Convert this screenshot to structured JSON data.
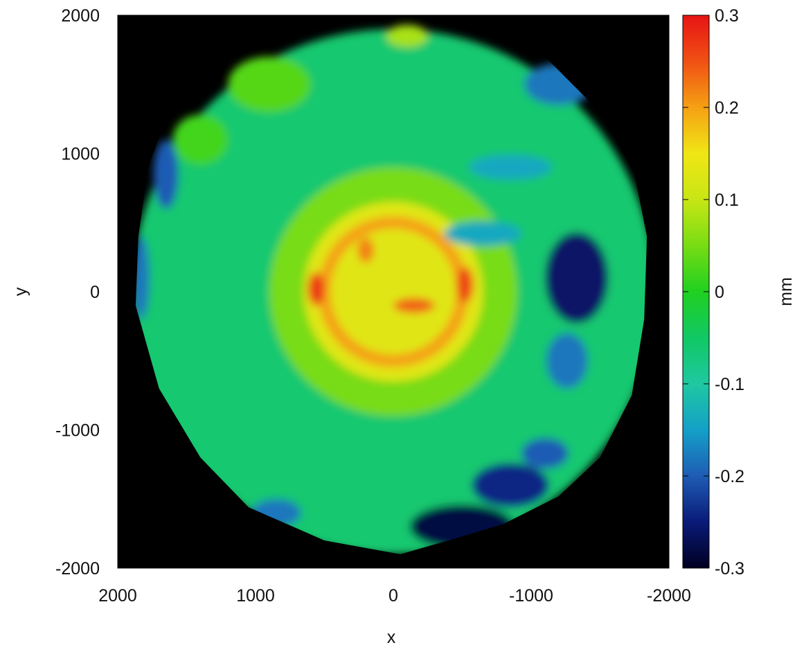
{
  "chart_data": {
    "type": "heatmap",
    "title": "",
    "xlabel": "x",
    "ylabel": "y",
    "xlim": [
      2000,
      -2000
    ],
    "ylim": [
      -2000,
      2000
    ],
    "x_reversed": true,
    "x_ticks": [
      2000,
      1000,
      0,
      -1000,
      -2000
    ],
    "x_tick_labels": [
      "2000",
      "1000",
      "0",
      "-1000",
      "-2000"
    ],
    "y_ticks": [
      2000,
      1000,
      0,
      -1000,
      -2000
    ],
    "y_tick_labels": [
      "2000",
      "1000",
      "0",
      "-1000",
      "-2000"
    ],
    "background_color": "#000000",
    "colorbar": {
      "label": "mm",
      "range": [
        -0.3,
        0.3
      ],
      "ticks": [
        0.3,
        0.2,
        0.1,
        0,
        -0.1,
        -0.2,
        -0.3
      ],
      "tick_labels": [
        "0.3",
        "0.2",
        "0.1",
        "0",
        "-0.1",
        "-0.2",
        "-0.3"
      ],
      "colormap": [
        {
          "value": -0.3,
          "color": "#000020"
        },
        {
          "value": -0.25,
          "color": "#0a1a78"
        },
        {
          "value": -0.2,
          "color": "#1e5cb4"
        },
        {
          "value": -0.15,
          "color": "#14a0c8"
        },
        {
          "value": -0.1,
          "color": "#1ec8a0"
        },
        {
          "value": -0.05,
          "color": "#10c864"
        },
        {
          "value": 0,
          "color": "#20d020"
        },
        {
          "value": 0.05,
          "color": "#78dc14"
        },
        {
          "value": 0.1,
          "color": "#c8e614"
        },
        {
          "value": 0.15,
          "color": "#f0e614"
        },
        {
          "value": 0.2,
          "color": "#f5a014"
        },
        {
          "value": 0.25,
          "color": "#f05014"
        },
        {
          "value": 0.3,
          "color": "#e61414"
        }
      ]
    },
    "disc_boundary": [
      [
        1850,
        400
      ],
      [
        1780,
        900
      ],
      [
        1650,
        1250
      ],
      [
        1450,
        1600
      ],
      [
        1100,
        1900
      ],
      [
        600,
        1980
      ],
      [
        0,
        2000
      ],
      [
        -600,
        1950
      ],
      [
        -1100,
        1700
      ],
      [
        -1500,
        1300
      ],
      [
        -1750,
        850
      ],
      [
        -1840,
        400
      ],
      [
        -1820,
        -200
      ],
      [
        -1730,
        -750
      ],
      [
        -1500,
        -1200
      ],
      [
        -1200,
        -1480
      ],
      [
        -800,
        -1680
      ],
      [
        -400,
        -1800
      ],
      [
        -50,
        -1900
      ],
      [
        500,
        -1800
      ],
      [
        1050,
        -1560
      ],
      [
        1400,
        -1200
      ],
      [
        1700,
        -700
      ],
      [
        1870,
        -100
      ]
    ],
    "features": [
      {
        "shape": "disc",
        "center": [
          0,
          0
        ],
        "radius": 1900,
        "value": -0.06
      },
      {
        "shape": "disc",
        "center": [
          0,
          0
        ],
        "radius": 900,
        "value": 0.05
      },
      {
        "shape": "disc",
        "center": [
          0,
          0
        ],
        "radius": 650,
        "value": 0.13
      },
      {
        "shape": "ring",
        "center": [
          0,
          0
        ],
        "radius": 500,
        "width": 90,
        "value": 0.2
      },
      {
        "shape": "blob",
        "center": [
          560,
          20
        ],
        "rx": 60,
        "ry": 120,
        "value": 0.27
      },
      {
        "shape": "blob",
        "center": [
          -520,
          50
        ],
        "rx": 60,
        "ry": 130,
        "value": 0.26
      },
      {
        "shape": "blob",
        "center": [
          -150,
          -100
        ],
        "rx": 150,
        "ry": 55,
        "value": 0.24
      },
      {
        "shape": "blob",
        "center": [
          200,
          300
        ],
        "rx": 60,
        "ry": 90,
        "value": 0.22
      },
      {
        "shape": "blob",
        "center": [
          -650,
          420
        ],
        "rx": 280,
        "ry": 90,
        "value": -0.14
      },
      {
        "shape": "blob",
        "center": [
          -1330,
          100
        ],
        "rx": 230,
        "ry": 330,
        "value": -0.26
      },
      {
        "shape": "blob",
        "center": [
          -1260,
          -500
        ],
        "rx": 150,
        "ry": 200,
        "value": -0.18
      },
      {
        "shape": "blob",
        "center": [
          -500,
          -1700
        ],
        "rx": 380,
        "ry": 160,
        "value": -0.28
      },
      {
        "shape": "blob",
        "center": [
          -850,
          -1400
        ],
        "rx": 280,
        "ry": 160,
        "value": -0.24
      },
      {
        "shape": "blob",
        "center": [
          -1100,
          -1170
        ],
        "rx": 170,
        "ry": 110,
        "value": -0.2
      },
      {
        "shape": "blob",
        "center": [
          -1200,
          1500
        ],
        "rx": 250,
        "ry": 150,
        "value": -0.18
      },
      {
        "shape": "blob",
        "center": [
          -850,
          900
        ],
        "rx": 300,
        "ry": 90,
        "value": -0.14
      },
      {
        "shape": "blob",
        "center": [
          1650,
          850
        ],
        "rx": 90,
        "ry": 250,
        "value": -0.2
      },
      {
        "shape": "blob",
        "center": [
          1830,
          100
        ],
        "rx": 60,
        "ry": 300,
        "value": -0.18
      },
      {
        "shape": "blob",
        "center": [
          850,
          -1600
        ],
        "rx": 180,
        "ry": 100,
        "value": -0.18
      },
      {
        "shape": "blob",
        "center": [
          900,
          1500
        ],
        "rx": 300,
        "ry": 200,
        "value": 0.03
      },
      {
        "shape": "blob",
        "center": [
          1400,
          1100
        ],
        "rx": 200,
        "ry": 180,
        "value": 0.02
      },
      {
        "shape": "blob",
        "center": [
          -100,
          1850
        ],
        "rx": 150,
        "ry": 80,
        "value": 0.08
      }
    ]
  }
}
